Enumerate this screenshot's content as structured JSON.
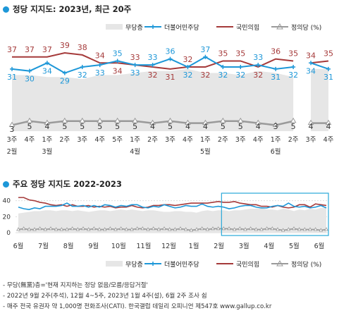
{
  "chart_data": [
    {
      "type": "line",
      "title": "정당 지지도: 2023년, 최근 20주",
      "legend": [
        "무당층",
        "더불어민주당",
        "국민의힘",
        "정의당 (%)"
      ],
      "x": [
        "3주",
        "4주",
        "1주",
        "2주",
        "3주",
        "4주",
        "5주",
        "1주",
        "2주",
        "3주",
        "4주",
        "1주",
        "2주",
        "3주",
        "4주",
        "1주",
        "2주",
        "3주",
        "4주"
      ],
      "month_labels": [
        {
          "label": "2월",
          "at": 0
        },
        {
          "label": "3월",
          "at": 2
        },
        {
          "label": "4월",
          "at": 7
        },
        {
          "label": "5월",
          "at": 11
        },
        {
          "label": "6월",
          "at": 15
        }
      ],
      "series": [
        {
          "name": "더불어민주당",
          "color": "#1d97d8",
          "values": [
            31,
            30,
            34,
            29,
            32,
            33,
            35,
            33,
            33,
            36,
            32,
            37,
            32,
            32,
            33,
            31,
            32,
            34,
            31
          ]
        },
        {
          "name": "국민의힘",
          "color": "#a53a3a",
          "values": [
            37,
            37,
            37,
            39,
            38,
            34,
            34,
            33,
            32,
            31,
            32,
            32,
            35,
            35,
            32,
            36,
            35,
            34,
            35
          ]
        },
        {
          "name": "정의당",
          "color": "#9a9a9a",
          "values": [
            3,
            5,
            4,
            5,
            5,
            5,
            5,
            5,
            4,
            5,
            4,
            4,
            5,
            5,
            4,
            3,
            5,
            4,
            4
          ]
        },
        {
          "name": "무당층",
          "color": "#e6e6e6",
          "values": [
            28,
            28,
            27,
            27,
            26,
            28,
            28,
            29,
            30,
            30,
            31,
            29,
            29,
            28,
            30,
            29,
            27,
            31,
            31
          ]
        }
      ],
      "gap_after_index": 16,
      "ylim": [
        0,
        45
      ]
    },
    {
      "type": "line",
      "title": "주요 정당 지지도 2022-2023",
      "legend": [
        "무당층",
        "더불어민주당",
        "국민의힘",
        "정의당 (%)"
      ],
      "x_month_labels": [
        "6월",
        "7월",
        "8월",
        "9월",
        "10월",
        "11월",
        "12월",
        "1월",
        "2월",
        "3월",
        "4월",
        "5월",
        "6월"
      ],
      "y_ticks": [
        0,
        20,
        40
      ],
      "series": [
        {
          "name": "더불어민주당",
          "color": "#1d97d8",
          "values": [
            32,
            30,
            29,
            31,
            30,
            33,
            33,
            33,
            34,
            37,
            33,
            33,
            34,
            32,
            34,
            32,
            35,
            34,
            32,
            34,
            33,
            35,
            35,
            32,
            31,
            33,
            32,
            35,
            33,
            31,
            32,
            34,
            33,
            33,
            36,
            33,
            32,
            33,
            32,
            30,
            31,
            33,
            34,
            34,
            32,
            31,
            31,
            33,
            34,
            33,
            37,
            33,
            32,
            33,
            31,
            32,
            34,
            31
          ]
        },
        {
          "name": "국민의힘",
          "color": "#a53a3a",
          "values": [
            44,
            44,
            41,
            40,
            38,
            37,
            35,
            34,
            35,
            33,
            35,
            33,
            33,
            34,
            32,
            33,
            32,
            33,
            31,
            32,
            32,
            34,
            32,
            31,
            32,
            34,
            34,
            35,
            35,
            34,
            35,
            36,
            37,
            37,
            37,
            37,
            38,
            39,
            38,
            38,
            39,
            37,
            36,
            35,
            35,
            33,
            33,
            32,
            34,
            32,
            31,
            32,
            35,
            35,
            32,
            36,
            35,
            34
          ]
        },
        {
          "name": "정의당",
          "color": "#9a9a9a",
          "values": [
            4,
            5,
            4,
            4,
            5,
            4,
            5,
            4,
            4,
            4,
            5,
            4,
            5,
            4,
            5,
            4,
            4,
            5,
            4,
            5,
            4,
            4,
            5,
            5,
            4,
            5,
            4,
            5,
            4,
            4,
            5,
            4,
            3,
            4,
            5,
            4,
            5,
            5,
            5,
            5,
            4,
            5,
            4,
            5,
            4,
            4,
            5,
            5,
            4,
            3,
            4,
            5,
            4,
            4,
            4,
            4,
            3,
            4
          ]
        },
        {
          "name": "무당층",
          "color": "#e6e6e6",
          "values": [
            24,
            25,
            26,
            27,
            27,
            28,
            28,
            27,
            28,
            28,
            27,
            28,
            27,
            26,
            27,
            28,
            28,
            27,
            28,
            29,
            28,
            29,
            28,
            27,
            28,
            28,
            27,
            26,
            26,
            27,
            27,
            26,
            26,
            25,
            27,
            28,
            27,
            28,
            28,
            27,
            28,
            28,
            29,
            30,
            30,
            31,
            29,
            29,
            28,
            30,
            29,
            27,
            29,
            28,
            30,
            29,
            31,
            31
          ]
        }
      ],
      "ylim": [
        0,
        45
      ],
      "highlight_label": "recent 20 weeks box"
    }
  ],
  "notes": [
    "- 무당(無黨)층='현재 지지하는 정당 없음/모름/응답거절'",
    "- 2022년 9월 2주(추석), 12월 4~5주, 2023년 1월 4주(설), 6월 2주 조사 쉼",
    "- 매주 전국 유권자 약 1,000명 전화조사(CATI). 한국갤럽 데일리 오피니언 제547호 www.gallup.co.kr"
  ]
}
